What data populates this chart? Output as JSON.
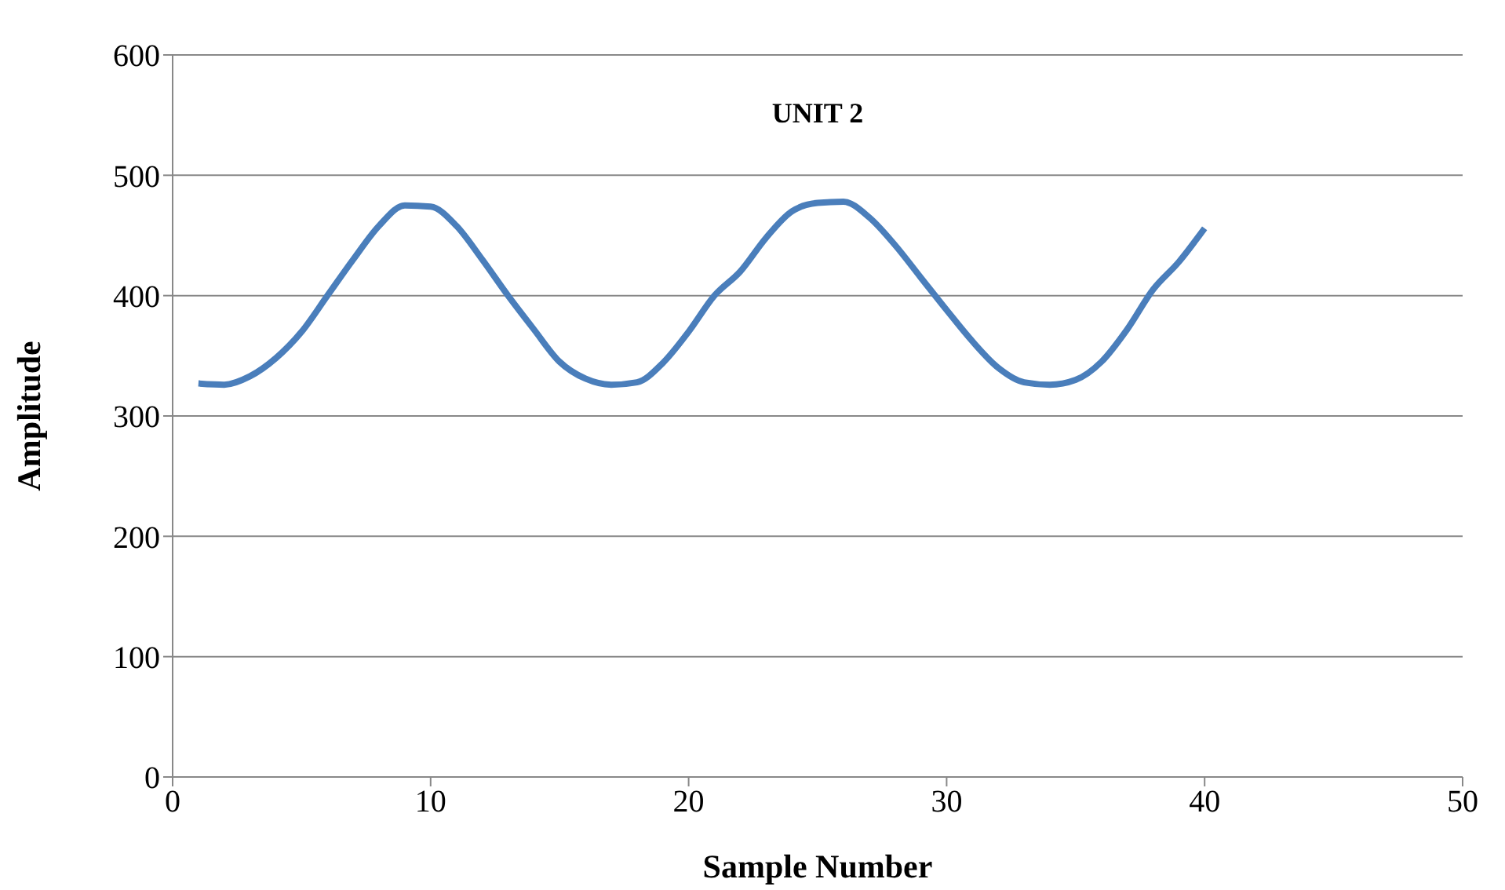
{
  "chart_data": {
    "type": "line",
    "title": "UNIT 2",
    "xlabel": "Sample Number",
    "ylabel": "Amplitude",
    "x": [
      1,
      2,
      3,
      4,
      5,
      6,
      7,
      8,
      9,
      10,
      11,
      12,
      13,
      14,
      15,
      16,
      17,
      18,
      19,
      20,
      21,
      22,
      23,
      24,
      25,
      26,
      27,
      28,
      29,
      30,
      31,
      32,
      33,
      34,
      35,
      36,
      37,
      38,
      39,
      40
    ],
    "series": [
      {
        "color": "#4a7ebb",
        "values": [
          327,
          326,
          333,
          348,
          370,
          400,
          430,
          458,
          475,
          474,
          458,
          430,
          400,
          372,
          345,
          331,
          326,
          328,
          344,
          370,
          400,
          420,
          448,
          470,
          477,
          478,
          465,
          442,
          415,
          388,
          362,
          340,
          328,
          326,
          330,
          345,
          372,
          405,
          428,
          456
        ]
      }
    ],
    "xlim": [
      0,
      50
    ],
    "xticks": [
      0,
      10,
      20,
      30,
      40,
      50
    ],
    "ylim": [
      0,
      600
    ],
    "yticks": [
      0,
      100,
      200,
      300,
      400,
      500,
      600
    ],
    "grid": "y",
    "legend": false,
    "marker": "none",
    "line_style": "solid"
  }
}
